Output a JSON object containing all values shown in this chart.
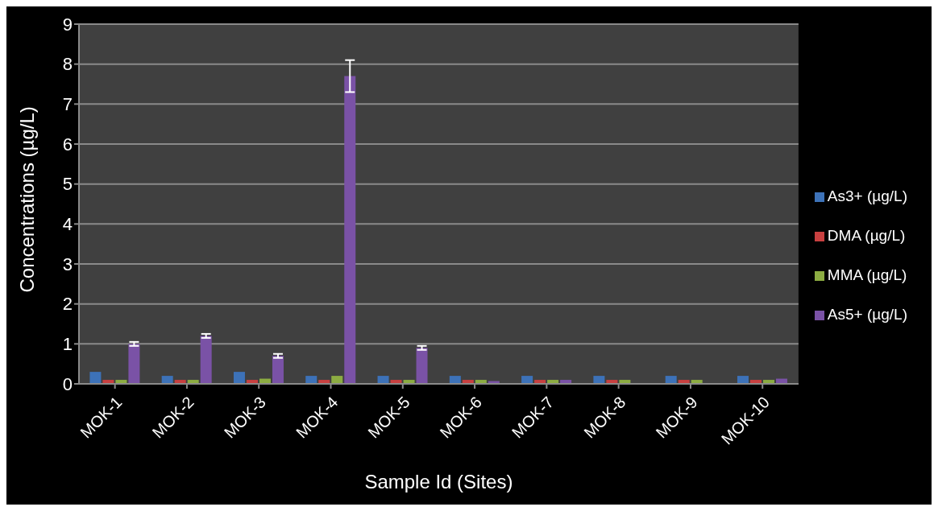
{
  "chart_data": {
    "type": "bar",
    "xlabel": "Sample Id (Sites)",
    "ylabel": "Concentrations (µg/L)",
    "categories": [
      "MOK-1",
      "MOK-2",
      "MOK-3",
      "MOK-4",
      "MOK-5",
      "MOK-6",
      "MOK-7",
      "MOK-8",
      "MOK-9",
      "MOK-10"
    ],
    "series": [
      {
        "name": "As3+  (µg/L)",
        "color": "#3d72b8",
        "values": [
          0.3,
          0.2,
          0.3,
          0.2,
          0.2,
          0.2,
          0.2,
          0.2,
          0.2,
          0.2
        ]
      },
      {
        "name": "DMA  (µg/L)",
        "color": "#c84040",
        "values": [
          0.1,
          0.1,
          0.1,
          0.1,
          0.1,
          0.1,
          0.1,
          0.1,
          0.1,
          0.1
        ]
      },
      {
        "name": "MMA  (µg/L)",
        "color": "#8cac42",
        "values": [
          0.1,
          0.1,
          0.13,
          0.2,
          0.1,
          0.1,
          0.1,
          0.1,
          0.1,
          0.1
        ]
      },
      {
        "name": "As5+  (µg/L)",
        "color": "#7a52a6",
        "values": [
          1.0,
          1.2,
          0.7,
          7.7,
          0.9,
          0.07,
          0.1,
          null,
          null,
          0.13
        ],
        "errors": [
          0.05,
          0.05,
          0.05,
          0.4,
          0.05,
          null,
          null,
          null,
          null,
          null
        ]
      }
    ],
    "ylim": [
      0,
      9
    ],
    "yticks": [
      0,
      1,
      2,
      3,
      4,
      5,
      6,
      7,
      8,
      9
    ],
    "grid": "y",
    "legend": "right"
  }
}
